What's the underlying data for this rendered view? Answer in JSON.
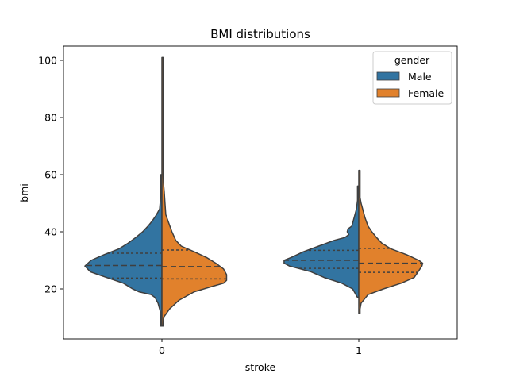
{
  "chart_data": {
    "type": "violin",
    "title": "BMI distributions",
    "xlabel": "stroke",
    "ylabel": "bmi",
    "categories": [
      "0",
      "1"
    ],
    "ylim": [
      2.5,
      105
    ],
    "yticks": [
      20,
      40,
      60,
      80,
      100
    ],
    "split": true,
    "inner": "quartile",
    "legend": {
      "title": "gender",
      "position": "top-right"
    },
    "series": [
      {
        "name": "Male",
        "color": "#3274a1",
        "violins": [
          {
            "category": "0",
            "quartiles": [
              23.8,
              28.2,
              32.5
            ],
            "range": [
              7,
              60
            ],
            "profile": [
              [
                7,
                0.003
              ],
              [
                9,
                0.01
              ],
              [
                12,
                0.02
              ],
              [
                15,
                0.05
              ],
              [
                17,
                0.09
              ],
              [
                18,
                0.14
              ],
              [
                19,
                0.3
              ],
              [
                20,
                0.38
              ],
              [
                22,
                0.5
              ],
              [
                24,
                0.72
              ],
              [
                26,
                0.93
              ],
              [
                28,
                1.0
              ],
              [
                30,
                0.92
              ],
              [
                32,
                0.75
              ],
              [
                34,
                0.56
              ],
              [
                36,
                0.44
              ],
              [
                38,
                0.34
              ],
              [
                40,
                0.25
              ],
              [
                42,
                0.18
              ],
              [
                44,
                0.12
              ],
              [
                46,
                0.07
              ],
              [
                48,
                0.03
              ],
              [
                52,
                0.015
              ],
              [
                56,
                0.008
              ],
              [
                60,
                0.003
              ]
            ]
          },
          {
            "category": "1",
            "quartiles": [
              27.2,
              30.0,
              33.5
            ],
            "range": [
              17,
              56
            ],
            "profile": [
              [
                17,
                0.0
              ],
              [
                20,
                0.08
              ],
              [
                22,
                0.22
              ],
              [
                24,
                0.45
              ],
              [
                26,
                0.62
              ],
              [
                28,
                0.9
              ],
              [
                29,
                0.97
              ],
              [
                30,
                0.97
              ],
              [
                31,
                0.88
              ],
              [
                33,
                0.72
              ],
              [
                35,
                0.52
              ],
              [
                37,
                0.32
              ],
              [
                38,
                0.18
              ],
              [
                39,
                0.13
              ],
              [
                40,
                0.15
              ],
              [
                41,
                0.14
              ],
              [
                42,
                0.09
              ],
              [
                44,
                0.07
              ],
              [
                46,
                0.05
              ],
              [
                48,
                0.03
              ],
              [
                51,
                0.01
              ],
              [
                56,
                0.0
              ]
            ]
          }
        ]
      },
      {
        "name": "Female",
        "color": "#e1812c",
        "violins": [
          {
            "category": "0",
            "quartiles": [
              23.5,
              27.8,
              33.6
            ],
            "range": [
              7,
              101
            ],
            "profile": [
              [
                7,
                0.0
              ],
              [
                10,
                0.02
              ],
              [
                13,
                0.1
              ],
              [
                16,
                0.22
              ],
              [
                19,
                0.42
              ],
              [
                21,
                0.67
              ],
              [
                22,
                0.8
              ],
              [
                23,
                0.84
              ],
              [
                25,
                0.84
              ],
              [
                27,
                0.8
              ],
              [
                29,
                0.7
              ],
              [
                31,
                0.58
              ],
              [
                33,
                0.42
              ],
              [
                35,
                0.25
              ],
              [
                37,
                0.18
              ],
              [
                40,
                0.13
              ],
              [
                43,
                0.09
              ],
              [
                46,
                0.05
              ],
              [
                50,
                0.04
              ],
              [
                54,
                0.03
              ],
              [
                57,
                0.02
              ],
              [
                60,
                0.005
              ],
              [
                65,
                0.003
              ],
              [
                80,
                0.002
              ],
              [
                101,
                0.0
              ]
            ]
          },
          {
            "category": "1",
            "quartiles": [
              25.8,
              29.0,
              34.2
            ],
            "range": [
              11.5,
              61.5
            ],
            "profile": [
              [
                11.5,
                0.0
              ],
              [
                13,
                0.01
              ],
              [
                15,
                0.03
              ],
              [
                18,
                0.12
              ],
              [
                20,
                0.32
              ],
              [
                22,
                0.55
              ],
              [
                24,
                0.72
              ],
              [
                26,
                0.77
              ],
              [
                28,
                0.82
              ],
              [
                29,
                0.83
              ],
              [
                30,
                0.78
              ],
              [
                32,
                0.62
              ],
              [
                34,
                0.42
              ],
              [
                36,
                0.3
              ],
              [
                38,
                0.23
              ],
              [
                40,
                0.17
              ],
              [
                42,
                0.12
              ],
              [
                45,
                0.08
              ],
              [
                48,
                0.05
              ],
              [
                50,
                0.03
              ],
              [
                52,
                0.015
              ],
              [
                55,
                0.008
              ],
              [
                58,
                0.003
              ],
              [
                61.5,
                0.0
              ]
            ]
          }
        ]
      }
    ]
  }
}
